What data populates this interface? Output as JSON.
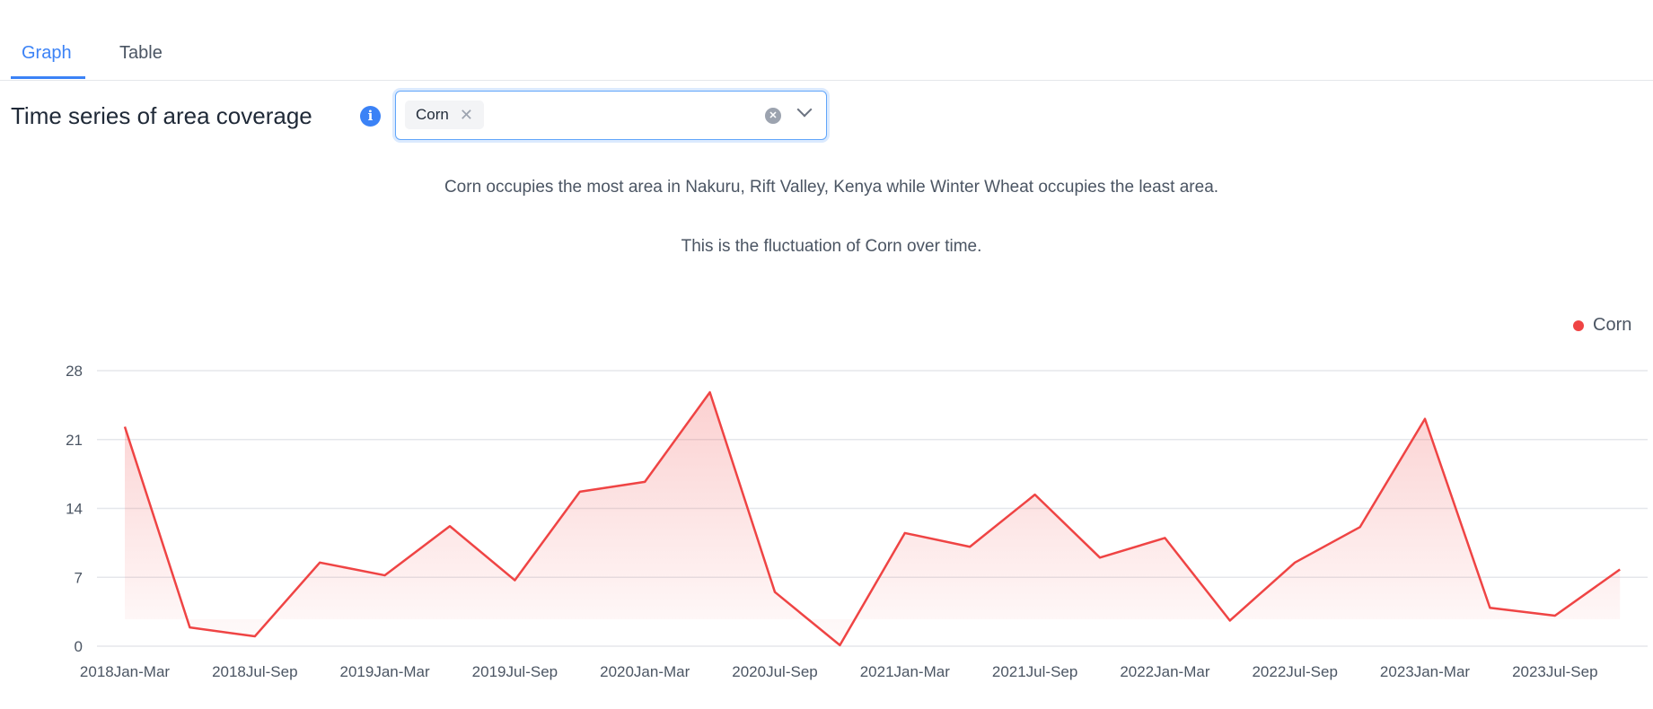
{
  "tabs": [
    {
      "label": "Graph",
      "active": true
    },
    {
      "label": "Table",
      "active": false
    }
  ],
  "header": {
    "title": "Time series of area coverage",
    "info_icon": "info-icon"
  },
  "select": {
    "selected": [
      "Corn"
    ],
    "clear_icon": "clear-circle-icon",
    "dropdown_icon": "chevron-down-icon"
  },
  "description": {
    "line1": "Corn occupies the most area in Nakuru, Rift Valley, Kenya while Winter Wheat occupies the least area.",
    "line2": "This is the fluctuation of Corn over time."
  },
  "colors": {
    "accent": "#3b82f6",
    "series": "#ef4444"
  },
  "chart_data": {
    "type": "area",
    "legend_position": "top-right",
    "grid": true,
    "ylim": [
      0,
      28
    ],
    "y_ticks": [
      0,
      7,
      14,
      21,
      28
    ],
    "x_tick_labels": [
      "2018Jan-Mar",
      "2018Jul-Sep",
      "2019Jan-Mar",
      "2019Jul-Sep",
      "2020Jan-Mar",
      "2020Jul-Sep",
      "2021Jan-Mar",
      "2021Jul-Sep",
      "2022Jan-Mar",
      "2022Jul-Sep",
      "2023Jan-Mar",
      "2023Jul-Sep"
    ],
    "series": [
      {
        "name": "Corn",
        "color": "#ef4444",
        "values": [
          22.3,
          1.9,
          1.0,
          8.5,
          7.2,
          12.2,
          6.7,
          15.7,
          16.7,
          25.8,
          5.5,
          0.1,
          11.5,
          10.1,
          15.4,
          9.0,
          11.0,
          2.6,
          8.5,
          12.1,
          23.1,
          3.9,
          3.1,
          7.8
        ]
      }
    ]
  }
}
